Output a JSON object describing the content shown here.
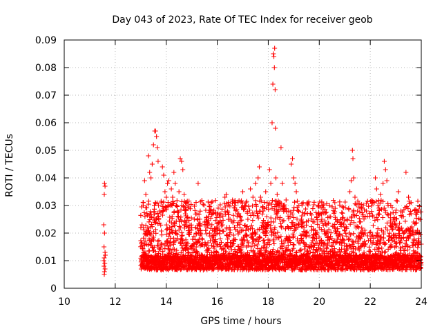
{
  "chart_data": {
    "type": "scatter",
    "title": "Day 043 of 2023, Rate Of TEC Index for receiver geob",
    "xlabel": "GPS time / hours",
    "ylabel": "ROTI / TECUs",
    "xlim": [
      10,
      24
    ],
    "ylim": [
      0,
      0.09
    ],
    "xticks": [
      "10",
      "12",
      "14",
      "16",
      "18",
      "20",
      "22",
      "24"
    ],
    "yticks": [
      "0",
      "0.01",
      "0.02",
      "0.03",
      "0.04",
      "0.05",
      "0.06",
      "0.07",
      "0.08",
      "0.09"
    ],
    "grid": true,
    "marker": "+",
    "color": "#ff0000",
    "series": [
      {
        "points": [
          [
            11.58,
            0.038
          ],
          [
            11.6,
            0.037
          ],
          [
            11.57,
            0.034
          ],
          [
            11.55,
            0.023
          ],
          [
            11.58,
            0.02
          ],
          [
            11.56,
            0.015
          ],
          [
            11.6,
            0.013
          ],
          [
            11.57,
            0.011
          ],
          [
            11.59,
            0.009
          ],
          [
            11.56,
            0.008
          ],
          [
            11.6,
            0.007
          ],
          [
            11.58,
            0.006
          ],
          [
            11.57,
            0.005
          ],
          [
            11.61,
            0.012
          ],
          [
            11.55,
            0.01
          ],
          [
            13.05,
            0.023
          ],
          [
            13.1,
            0.03
          ],
          [
            13.15,
            0.039
          ],
          [
            13.2,
            0.034
          ],
          [
            13.3,
            0.048
          ],
          [
            13.35,
            0.042
          ],
          [
            13.4,
            0.04
          ],
          [
            13.45,
            0.045
          ],
          [
            13.5,
            0.052
          ],
          [
            13.55,
            0.057
          ],
          [
            13.58,
            0.057
          ],
          [
            13.62,
            0.055
          ],
          [
            13.65,
            0.051
          ],
          [
            13.68,
            0.046
          ],
          [
            13.7,
            0.03
          ],
          [
            13.75,
            0.028
          ],
          [
            13.8,
            0.031
          ],
          [
            13.85,
            0.044
          ],
          [
            13.9,
            0.041
          ],
          [
            13.95,
            0.035
          ],
          [
            14.0,
            0.033
          ],
          [
            14.05,
            0.038
          ],
          [
            14.1,
            0.039
          ],
          [
            14.15,
            0.03
          ],
          [
            14.2,
            0.036
          ],
          [
            14.25,
            0.033
          ],
          [
            14.3,
            0.042
          ],
          [
            14.35,
            0.038
          ],
          [
            14.4,
            0.03
          ],
          [
            14.45,
            0.028
          ],
          [
            14.5,
            0.035
          ],
          [
            14.55,
            0.047
          ],
          [
            14.6,
            0.046
          ],
          [
            14.65,
            0.043
          ],
          [
            14.7,
            0.034
          ],
          [
            14.75,
            0.027
          ],
          [
            14.8,
            0.024
          ],
          [
            14.9,
            0.02
          ],
          [
            15.0,
            0.022
          ],
          [
            15.1,
            0.025
          ],
          [
            15.2,
            0.027
          ],
          [
            15.25,
            0.038
          ],
          [
            15.35,
            0.021
          ],
          [
            15.4,
            0.018
          ],
          [
            15.5,
            0.024
          ],
          [
            15.6,
            0.022
          ],
          [
            15.7,
            0.02
          ],
          [
            15.8,
            0.019
          ],
          [
            15.9,
            0.017
          ],
          [
            16.0,
            0.02
          ],
          [
            16.1,
            0.021
          ],
          [
            16.2,
            0.023
          ],
          [
            16.3,
            0.033
          ],
          [
            16.35,
            0.034
          ],
          [
            16.4,
            0.028
          ],
          [
            16.5,
            0.025
          ],
          [
            16.6,
            0.032
          ],
          [
            16.7,
            0.03
          ],
          [
            16.8,
            0.027
          ],
          [
            16.9,
            0.026
          ],
          [
            17.0,
            0.035
          ],
          [
            17.1,
            0.03
          ],
          [
            17.2,
            0.025
          ],
          [
            17.3,
            0.036
          ],
          [
            17.4,
            0.033
          ],
          [
            17.5,
            0.038
          ],
          [
            17.6,
            0.04
          ],
          [
            17.65,
            0.044
          ],
          [
            17.7,
            0.033
          ],
          [
            17.8,
            0.028
          ],
          [
            17.9,
            0.035
          ],
          [
            18.0,
            0.03
          ],
          [
            18.05,
            0.043
          ],
          [
            18.1,
            0.038
          ],
          [
            18.15,
            0.06
          ],
          [
            18.18,
            0.074
          ],
          [
            18.2,
            0.085
          ],
          [
            18.22,
            0.084
          ],
          [
            18.24,
            0.08
          ],
          [
            18.25,
            0.087
          ],
          [
            18.27,
            0.072
          ],
          [
            18.28,
            0.058
          ],
          [
            18.3,
            0.04
          ],
          [
            18.35,
            0.034
          ],
          [
            18.4,
            0.028
          ],
          [
            18.45,
            0.025
          ],
          [
            18.5,
            0.051
          ],
          [
            18.55,
            0.038
          ],
          [
            18.6,
            0.03
          ],
          [
            18.7,
            0.032
          ],
          [
            18.8,
            0.028
          ],
          [
            18.9,
            0.045
          ],
          [
            18.95,
            0.047
          ],
          [
            19.0,
            0.04
          ],
          [
            19.05,
            0.038
          ],
          [
            19.1,
            0.035
          ],
          [
            19.2,
            0.03
          ],
          [
            19.3,
            0.025
          ],
          [
            19.4,
            0.022
          ],
          [
            19.5,
            0.02
          ],
          [
            19.6,
            0.019
          ],
          [
            19.7,
            0.021
          ],
          [
            19.8,
            0.024
          ],
          [
            19.9,
            0.026
          ],
          [
            20.0,
            0.022
          ],
          [
            20.1,
            0.025
          ],
          [
            20.2,
            0.021
          ],
          [
            20.3,
            0.02
          ],
          [
            20.5,
            0.018
          ],
          [
            20.7,
            0.017
          ],
          [
            20.9,
            0.019
          ],
          [
            21.0,
            0.022
          ],
          [
            21.1,
            0.025
          ],
          [
            21.2,
            0.035
          ],
          [
            21.25,
            0.039
          ],
          [
            21.3,
            0.05
          ],
          [
            21.32,
            0.047
          ],
          [
            21.35,
            0.04
          ],
          [
            21.4,
            0.033
          ],
          [
            21.5,
            0.028
          ],
          [
            21.6,
            0.024
          ],
          [
            21.7,
            0.021
          ],
          [
            21.8,
            0.02
          ],
          [
            21.9,
            0.019
          ],
          [
            22.0,
            0.018
          ],
          [
            22.1,
            0.026
          ],
          [
            22.2,
            0.04
          ],
          [
            22.25,
            0.036
          ],
          [
            22.3,
            0.03
          ],
          [
            22.4,
            0.034
          ],
          [
            22.5,
            0.038
          ],
          [
            22.55,
            0.046
          ],
          [
            22.6,
            0.043
          ],
          [
            22.65,
            0.039
          ],
          [
            22.7,
            0.03
          ],
          [
            22.8,
            0.027
          ],
          [
            22.9,
            0.025
          ],
          [
            23.0,
            0.023
          ],
          [
            23.1,
            0.035
          ],
          [
            23.2,
            0.028
          ],
          [
            23.3,
            0.026
          ],
          [
            23.4,
            0.042
          ],
          [
            23.5,
            0.033
          ],
          [
            23.6,
            0.027
          ],
          [
            23.7,
            0.024
          ],
          [
            23.8,
            0.02
          ],
          [
            23.9,
            0.018
          ],
          [
            24.0,
            0.016
          ]
        ]
      }
    ],
    "baseline_band": {
      "x_start": 13.0,
      "x_end": 24.0,
      "y_min": 0.003,
      "y_typical": 0.009,
      "y_max": 0.018,
      "density": "dense"
    }
  }
}
